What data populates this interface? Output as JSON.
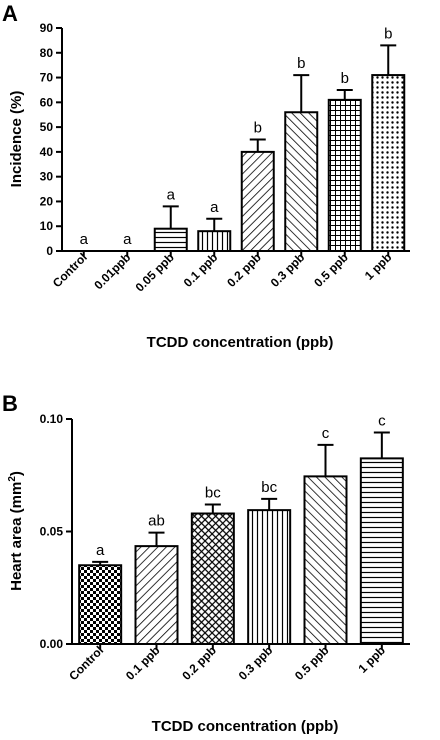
{
  "chart_data": [
    {
      "type": "bar",
      "panel": "A",
      "categories": [
        "Control",
        "0.01ppb",
        "0.05 ppb",
        "0.1 ppb",
        "0.2 ppb",
        "0.3 ppb",
        "0.5 ppb",
        "1 ppb"
      ],
      "values": [
        0,
        0,
        9,
        8,
        40,
        56,
        61,
        71
      ],
      "errors": [
        0,
        0,
        9,
        5,
        5,
        15,
        4,
        12
      ],
      "significance": [
        "a",
        "a",
        "a",
        "a",
        "b",
        "b",
        "b",
        "b"
      ],
      "patterns": [
        "none",
        "none",
        "horizontal",
        "vertical",
        "diag-up",
        "diag-down",
        "grid",
        "dots"
      ],
      "xlabel": "TCDD concentration (ppb)",
      "ylabel": "Incidence (%)",
      "ylim": [
        0,
        90
      ],
      "yticks": [
        "0",
        "10",
        "20",
        "30",
        "40",
        "50",
        "60",
        "70",
        "80",
        "90"
      ],
      "ytick_values": [
        0,
        10,
        20,
        30,
        40,
        50,
        60,
        70,
        80,
        90
      ],
      "grid": false,
      "legend": "none"
    },
    {
      "type": "bar",
      "panel": "B",
      "categories": [
        "Control",
        "0.1 ppb",
        "0.2 ppb",
        "0.3 ppb",
        "0.5 ppb",
        "1 ppb"
      ],
      "values": [
        0.035,
        0.0435,
        0.058,
        0.0595,
        0.0745,
        0.0825
      ],
      "errors": [
        0.0015,
        0.006,
        0.004,
        0.005,
        0.014,
        0.0115
      ],
      "significance": [
        "a",
        "ab",
        "bc",
        "bc",
        "c",
        "c"
      ],
      "patterns": [
        "checker",
        "diag-up",
        "crosshatch",
        "vertical",
        "diag-down",
        "horizontal"
      ],
      "xlabel": "TCDD concentration (ppb)",
      "ylabel_text": "Heart area (mm",
      "ylabel_sup": "2",
      "ylabel_close": ")",
      "ylim": [
        0,
        0.1
      ],
      "yticks": [
        "0.00",
        "0.05",
        "0.10"
      ],
      "ytick_values": [
        0,
        0.05,
        0.1
      ],
      "grid": false,
      "legend": "none"
    }
  ]
}
